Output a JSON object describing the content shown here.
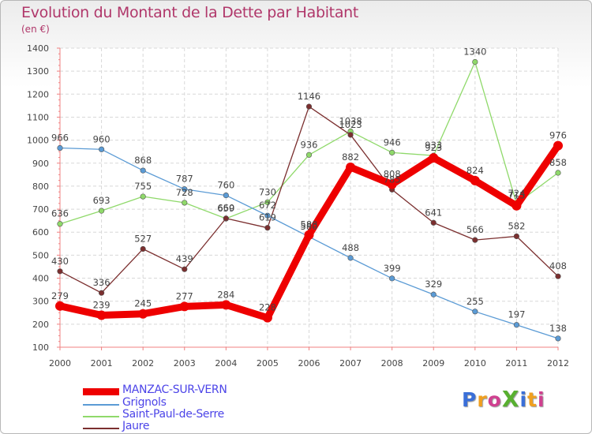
{
  "title": "Evolution du Montant de la Dette par Habitant",
  "subtitle": "(en €)",
  "logo": {
    "text": "ProXiti",
    "colors": [
      "#3a6fd8",
      "#f0a020",
      "#d04090",
      "#58b030",
      "#3a6fd8",
      "#f0a020",
      "#d04090"
    ]
  },
  "chart_data": {
    "type": "line",
    "x": [
      "2000",
      "2001",
      "2002",
      "2003",
      "2004",
      "2005",
      "2006",
      "2007",
      "2008",
      "2009",
      "2010",
      "2011",
      "2012"
    ],
    "ylim": [
      100,
      1400
    ],
    "yticks": [
      100,
      200,
      300,
      400,
      500,
      600,
      700,
      800,
      900,
      1000,
      1100,
      1200,
      1300,
      1400
    ],
    "grid": true,
    "legend_position": "bottom-left",
    "series": [
      {
        "name": "MANZAC-SUR-VERN",
        "color": "#ee0000",
        "values": [
          279,
          239,
          245,
          277,
          284,
          228,
          588,
          882,
          808,
          923,
          824,
          715,
          976
        ]
      },
      {
        "name": "Grignols",
        "color": "#5b9bd5",
        "values": [
          966,
          960,
          868,
          787,
          760,
          672,
          580,
          488,
          399,
          329,
          255,
          197,
          138
        ]
      },
      {
        "name": "Saint-Paul-de-Serre",
        "color": "#8fd96a",
        "values": [
          636,
          693,
          755,
          728,
          659,
          730,
          936,
          1038,
          946,
          933,
          1340,
          724,
          858
        ]
      },
      {
        "name": "Jaure",
        "color": "#7b2f2f",
        "values": [
          430,
          336,
          527,
          439,
          660,
          619,
          1146,
          1023,
          785,
          641,
          566,
          582,
          408
        ]
      }
    ]
  }
}
